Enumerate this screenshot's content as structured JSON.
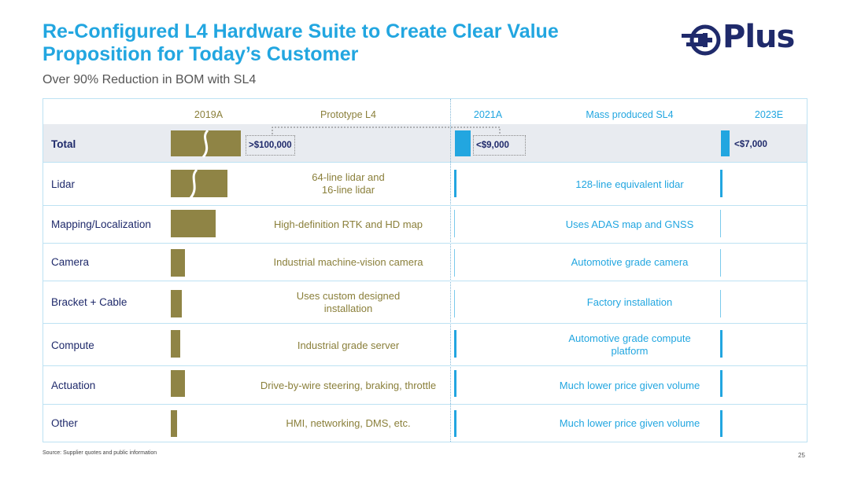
{
  "header": {
    "title_line1": "Re-Configured L4 Hardware Suite to Create Clear Value",
    "title_line2": "Proposition for Today’s Customer",
    "subtitle": "Over 90% Reduction in BOM with SL4",
    "logo_text": "Plus"
  },
  "columns": {
    "year_old": "2019A",
    "label_old": "Prototype L4",
    "year_mid": "2021A",
    "label_mid": "Mass produced SL4",
    "year_new": "2023E"
  },
  "chart_data": {
    "type": "bar",
    "title": "Over 90% Reduction in BOM with SL4",
    "units": "USD",
    "total": {
      "label": "Total",
      "values": {
        "2019A": 100000,
        "2021A": 9000,
        "2023E": 7000
      },
      "value_labels": {
        "2019A": ">$100,000",
        "2021A": "<$9,000",
        "2023E": "<$7,000"
      }
    },
    "categories": [
      "Lidar",
      "Mapping/Localization",
      "Camera",
      "Bracket + Cable",
      "Compute",
      "Actuation",
      "Other"
    ],
    "relative_cost_2019A": [
      0.65,
      0.52,
      0.15,
      0.12,
      0.11,
      0.16,
      0.07
    ],
    "relative_cost_2021A": [
      0.02,
      0.005,
      0.005,
      0.005,
      0.02,
      0.02,
      0.02
    ],
    "relative_cost_2023E": [
      0.02,
      0.005,
      0.005,
      0.005,
      0.02,
      0.02,
      0.02
    ],
    "descriptions_old": [
      [
        "64-line lidar and",
        "16-line lidar"
      ],
      [
        "High-definition RTK and HD map"
      ],
      [
        "Industrial machine-vision camera"
      ],
      [
        "Uses custom designed",
        "installation"
      ],
      [
        "Industrial grade server"
      ],
      [
        "Drive-by-wire steering, braking, throttle"
      ],
      [
        "HMI, networking, DMS, etc."
      ]
    ],
    "descriptions_new": [
      [
        "128-line equivalent lidar"
      ],
      [
        "Uses ADAS map and GNSS"
      ],
      [
        "Automotive grade camera"
      ],
      [
        "Factory installation"
      ],
      [
        "Automotive grade compute",
        "platform"
      ],
      [
        "Much lower price given volume"
      ],
      [
        "Much lower price given volume"
      ]
    ]
  },
  "footer": {
    "source": "Source: Supplier quotes and public information",
    "page": "25"
  },
  "colors": {
    "accent_blue": "#22a6e0",
    "olive": "#8f8445",
    "navy": "#1f2a6b"
  }
}
